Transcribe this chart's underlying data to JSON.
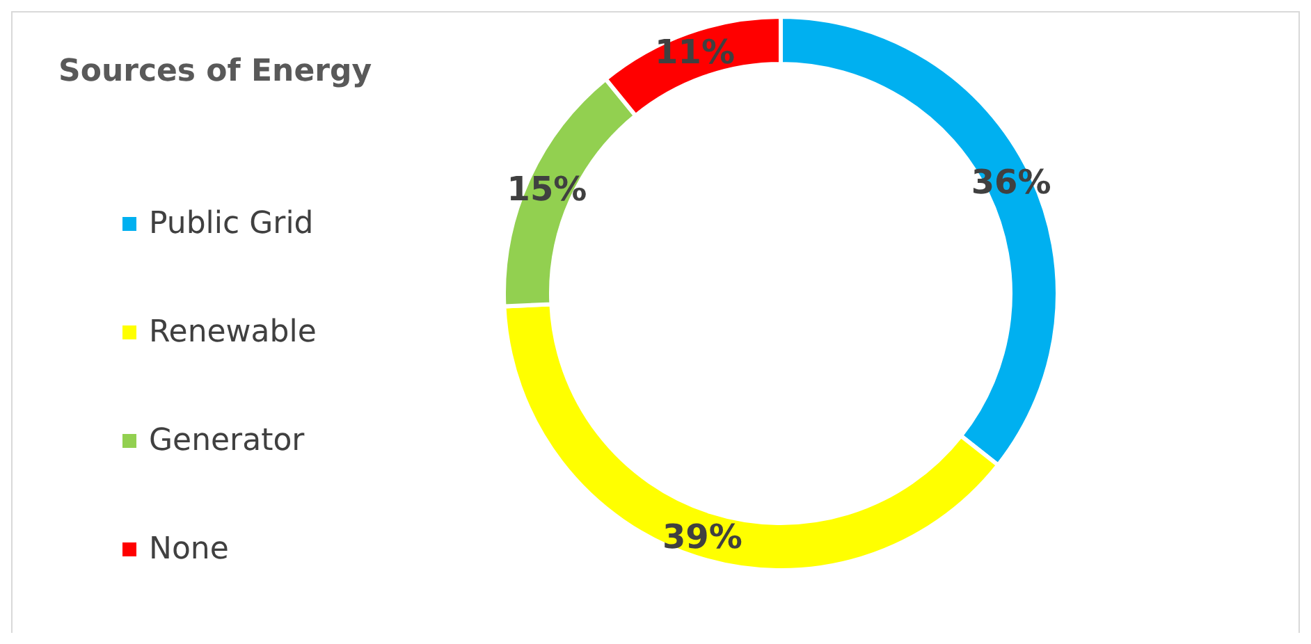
{
  "chart_data": {
    "type": "donut",
    "title": "Sources of Energy",
    "categories": [
      "Public Grid",
      "Renewable",
      "Generator",
      "None"
    ],
    "values": [
      36,
      39,
      15,
      11
    ],
    "colors": [
      "#00b0f0",
      "#ffff00",
      "#92d050",
      "#ff0000"
    ],
    "value_labels": [
      "36%",
      "39%",
      "15%",
      "11%"
    ],
    "legend": "left"
  }
}
